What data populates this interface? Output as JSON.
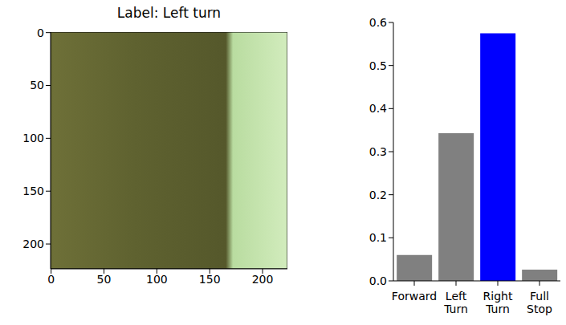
{
  "chart_data": [
    {
      "type": "image",
      "title": "Label: Left turn",
      "xlim": [
        -0.5,
        223.5
      ],
      "ylim": [
        223.5,
        -0.5
      ],
      "xticks": [
        0,
        50,
        100,
        150,
        200
      ],
      "yticks": [
        0,
        50,
        100,
        150,
        200
      ]
    },
    {
      "type": "bar",
      "categories": [
        "Forward",
        "Left Turn",
        "Right Turn",
        "Full Stop"
      ],
      "values": [
        0.06,
        0.343,
        0.575,
        0.026
      ],
      "colors": [
        "#808080",
        "#808080",
        "#0000ff",
        "#808080"
      ],
      "ylim": [
        0,
        0.6
      ],
      "yticks": [
        {
          "value": 0,
          "label": "0.0"
        },
        0.1,
        0.2,
        0.3,
        0.4,
        0.5,
        0.6
      ]
    }
  ]
}
